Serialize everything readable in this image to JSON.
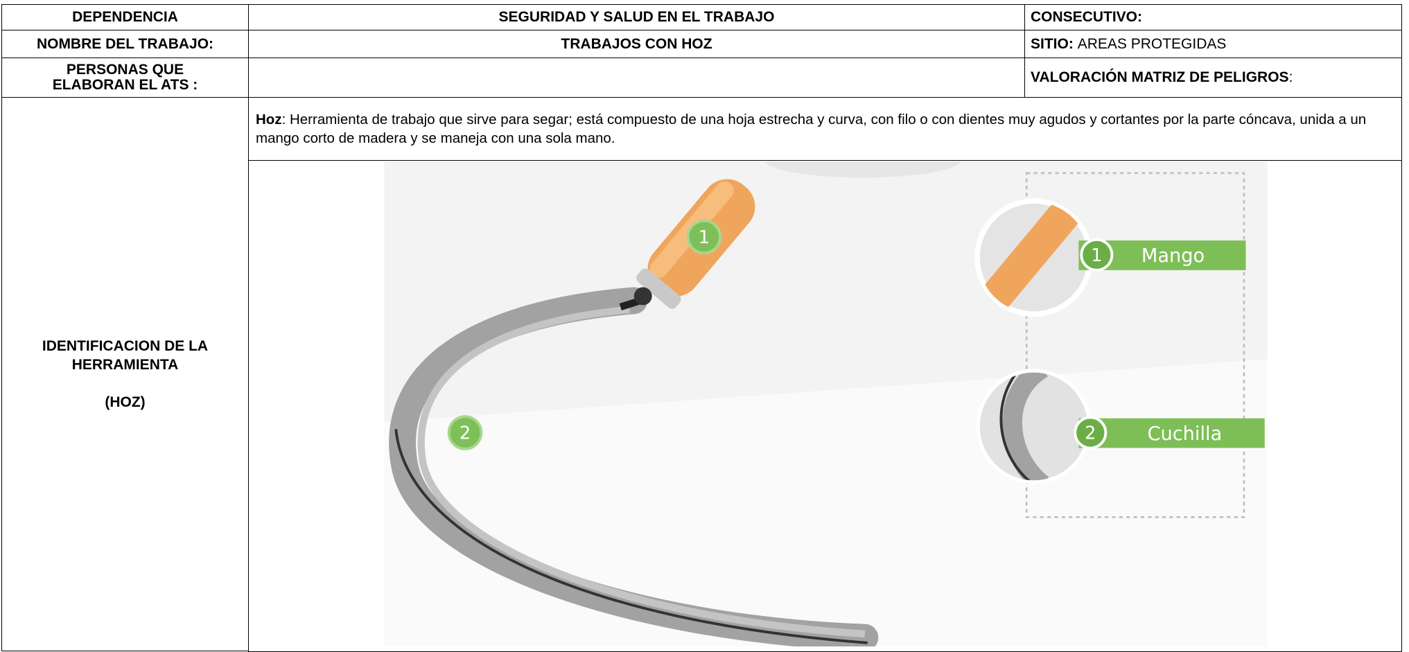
{
  "header": {
    "dependencia": "DEPENDENCIA",
    "area": "SEGURIDAD Y SALUD EN EL TRABAJO",
    "consecutivo": "CONSECUTIVO:"
  },
  "trabajo": {
    "label": "NOMBRE DEL TRABAJO:",
    "value": "TRABAJOS CON HOZ",
    "sitio_label": "SITIO:",
    "sitio_value": "AREAS PROTEGIDAS"
  },
  "personas": {
    "label": "PERSONAS QUE ELABORAN EL ATS :",
    "valoracion_label": "VALORACIÓN MATRIZ DE PELIGROS",
    "valoracion_suffix": ":"
  },
  "identificacion": {
    "label": "IDENTIFICACION DE LA HERRAMIENTA",
    "tool": "(HOZ)",
    "term": "Hoz",
    "definition": ":  Herramienta de trabajo que sirve para segar; está compuesto de una hoja estrecha y curva, con filo o con dientes muy agudos y cortantes por la parte cóncava, unida a un mango corto de madera y se maneja con una sola mano."
  },
  "illustration": {
    "callouts": [
      {
        "number": "1",
        "label": "Mango"
      },
      {
        "number": "2",
        "label": "Cuchilla"
      }
    ]
  }
}
